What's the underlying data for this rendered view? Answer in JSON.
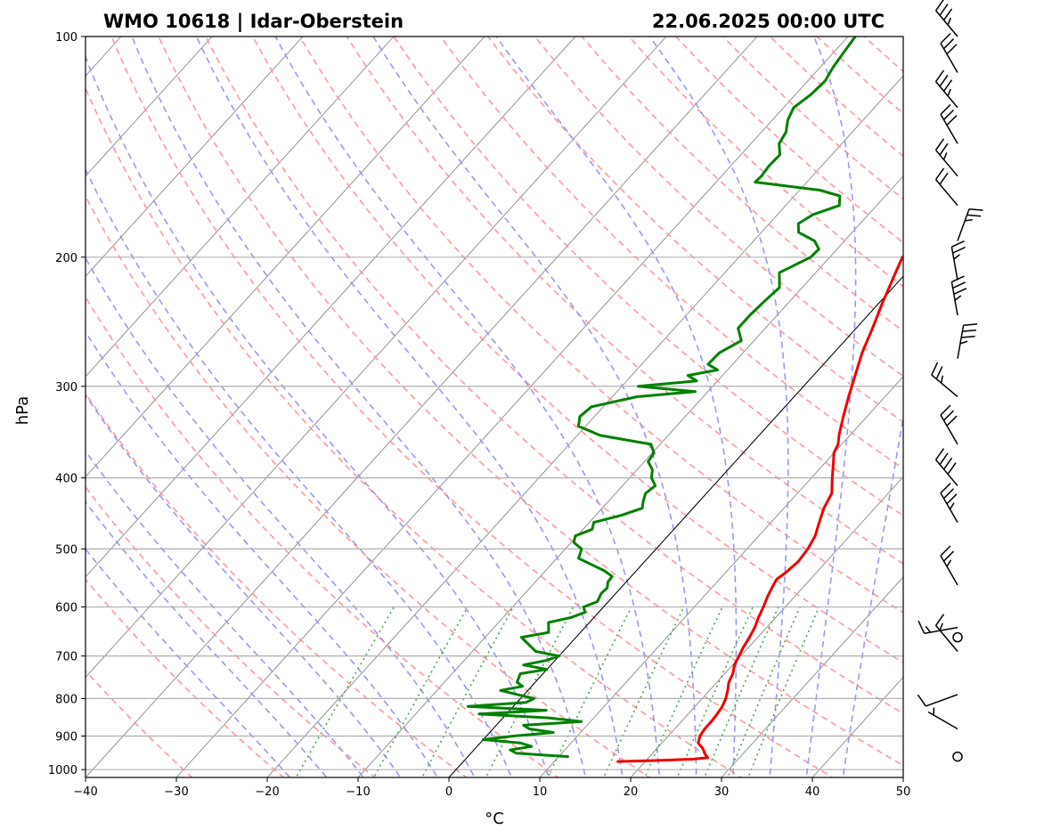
{
  "header": {
    "title_left": "WMO 10618 | Idar-Oberstein",
    "title_right": "22.06.2025 00:00 UTC"
  },
  "chart_data": {
    "type": "line",
    "diagram": "skew-T log-P",
    "xlabel": "°C",
    "ylabel": "hPa",
    "xlim": [
      -40,
      50
    ],
    "ylim": [
      1025,
      100
    ],
    "y_scale": "log",
    "x_ticks": [
      "−40",
      "−30",
      "−20",
      "−10",
      "0",
      "10",
      "20",
      "30",
      "40",
      "50"
    ],
    "y_ticks": [
      "100",
      "200",
      "300",
      "400",
      "500",
      "600",
      "700",
      "800",
      "900",
      "1000"
    ],
    "grid": true,
    "reference_line": {
      "description": "0 °C isotherm",
      "color": "#000000"
    },
    "background_lines": {
      "dry_adiabats": {
        "color": "#ff9999",
        "style": "dashed"
      },
      "moist_adiabats": {
        "color": "#9999ee",
        "style": "dashed"
      },
      "mixing_ratio": {
        "color": "#44aa44",
        "style": "dotted"
      },
      "isotherms": {
        "color": "#888888",
        "style": "solid"
      }
    },
    "series": [
      {
        "key": "temperature",
        "color": "#ee0000",
        "points": [
          [
            975,
            17
          ],
          [
            972,
            21
          ],
          [
            968,
            25
          ],
          [
            963,
            26.5
          ],
          [
            955,
            26
          ],
          [
            945,
            25.5
          ],
          [
            935,
            25
          ],
          [
            920,
            24
          ],
          [
            900,
            23.5
          ],
          [
            880,
            23.3
          ],
          [
            860,
            23.3
          ],
          [
            840,
            23.2
          ],
          [
            820,
            23
          ],
          [
            800,
            22.6
          ],
          [
            780,
            22
          ],
          [
            760,
            21.3
          ],
          [
            740,
            20.9
          ],
          [
            720,
            20.2
          ],
          [
            700,
            19.8
          ],
          [
            680,
            19.4
          ],
          [
            660,
            19.1
          ],
          [
            640,
            18.7
          ],
          [
            620,
            18.1
          ],
          [
            600,
            17.6
          ],
          [
            580,
            17.0
          ],
          [
            560,
            16.5
          ],
          [
            550,
            16.3
          ],
          [
            540,
            16.6
          ],
          [
            520,
            16.9
          ],
          [
            500,
            16.7
          ],
          [
            480,
            16.2
          ],
          [
            460,
            15.3
          ],
          [
            440,
            14.4
          ],
          [
            420,
            13.8
          ],
          [
            400,
            12.3
          ],
          [
            380,
            10.8
          ],
          [
            370,
            10.0
          ],
          [
            360,
            9.6
          ],
          [
            350,
            8.8
          ],
          [
            330,
            7.4
          ],
          [
            310,
            6.0
          ],
          [
            290,
            4.6
          ],
          [
            270,
            3.1
          ],
          [
            250,
            1.8
          ],
          [
            230,
            0.3
          ],
          [
            210,
            -1.2
          ],
          [
            200,
            -2.0
          ],
          [
            195,
            -1.3
          ],
          [
            190,
            -1.0
          ],
          [
            186,
            -0.5
          ],
          [
            180,
            -0.1
          ],
          [
            170,
            0.9
          ],
          [
            165,
            1.0
          ],
          [
            160,
            1.8
          ],
          [
            155,
            3.5
          ],
          [
            152,
            5.8
          ],
          [
            150,
            6.3
          ],
          [
            145,
            7.2
          ],
          [
            140,
            8.2
          ],
          [
            135,
            10.3
          ],
          [
            130,
            12.6
          ],
          [
            127,
            14.5
          ],
          [
            124,
            15.2
          ],
          [
            120,
            16.2
          ],
          [
            115,
            18.3
          ],
          [
            110,
            20.5
          ],
          [
            106,
            22.1
          ],
          [
            103,
            23.5
          ],
          [
            100,
            24.4
          ]
        ]
      },
      {
        "key": "dewpoint",
        "color": "#008000",
        "points": [
          [
            960,
            11
          ],
          [
            955,
            8
          ],
          [
            950,
            5
          ],
          [
            940,
            4
          ],
          [
            930,
            6
          ],
          [
            920,
            4.5
          ],
          [
            910,
            0
          ],
          [
            900,
            3
          ],
          [
            890,
            7
          ],
          [
            880,
            4
          ],
          [
            870,
            3
          ],
          [
            860,
            9
          ],
          [
            850,
            5
          ],
          [
            840,
            -3
          ],
          [
            830,
            4
          ],
          [
            820,
            -5
          ],
          [
            810,
            1
          ],
          [
            800,
            1.5
          ],
          [
            780,
            -3
          ],
          [
            770,
            -1
          ],
          [
            760,
            -2
          ],
          [
            740,
            -2.5
          ],
          [
            730,
            0
          ],
          [
            720,
            -3
          ],
          [
            710,
            -1
          ],
          [
            700,
            0
          ],
          [
            690,
            -3
          ],
          [
            680,
            -4
          ],
          [
            670,
            -5
          ],
          [
            660,
            -6
          ],
          [
            650,
            -3.5
          ],
          [
            630,
            -4.5
          ],
          [
            620,
            -2.5
          ],
          [
            610,
            -1.5
          ],
          [
            600,
            -2.2
          ],
          [
            590,
            -1.2
          ],
          [
            575,
            -1.6
          ],
          [
            565,
            -1.5
          ],
          [
            555,
            -2.0
          ],
          [
            545,
            -2.1
          ],
          [
            535,
            -3.6
          ],
          [
            525,
            -5.6
          ],
          [
            515,
            -7.6
          ],
          [
            500,
            -8.2
          ],
          [
            490,
            -9.7
          ],
          [
            480,
            -10.2
          ],
          [
            470,
            -9.0
          ],
          [
            460,
            -9.5
          ],
          [
            450,
            -7.2
          ],
          [
            440,
            -5.6
          ],
          [
            430,
            -6.2
          ],
          [
            420,
            -6.7
          ],
          [
            410,
            -6.4
          ],
          [
            400,
            -7.6
          ],
          [
            390,
            -8.3
          ],
          [
            380,
            -9.6
          ],
          [
            370,
            -9.8
          ],
          [
            360,
            -11.0
          ],
          [
            350,
            -17.5
          ],
          [
            340,
            -20.8
          ],
          [
            330,
            -21.6
          ],
          [
            320,
            -21.3
          ],
          [
            310,
            -17.3
          ],
          [
            305,
            -11.4
          ],
          [
            300,
            -18.2
          ],
          [
            295,
            -12.3
          ],
          [
            290,
            -13.8
          ],
          [
            285,
            -11.1
          ],
          [
            280,
            -12.7
          ],
          [
            270,
            -12.6
          ],
          [
            260,
            -11.4
          ],
          [
            250,
            -13.0
          ],
          [
            240,
            -13.0
          ],
          [
            230,
            -12.8
          ],
          [
            220,
            -12.5
          ],
          [
            210,
            -14.0
          ],
          [
            200,
            -12.1
          ],
          [
            195,
            -12.0
          ],
          [
            190,
            -13.3
          ],
          [
            185,
            -15.9
          ],
          [
            180,
            -16.8
          ],
          [
            175,
            -16.1
          ],
          [
            170,
            -14.1
          ],
          [
            165,
            -15.0
          ],
          [
            162,
            -17.8
          ],
          [
            158,
            -25.7
          ],
          [
            155,
            -25.6
          ],
          [
            150,
            -25.8
          ],
          [
            145,
            -25.7
          ],
          [
            140,
            -26.9
          ],
          [
            135,
            -27.3
          ],
          [
            130,
            -28.3
          ],
          [
            125,
            -28.9
          ],
          [
            120,
            -28.3
          ],
          [
            115,
            -28.1
          ],
          [
            110,
            -28.6
          ],
          [
            105,
            -28.9
          ],
          [
            100,
            -29.2
          ]
        ]
      }
    ],
    "wind_barbs": [
      {
        "p": 960,
        "dir": 210,
        "spd": 0
      },
      {
        "p": 880,
        "dir": 300,
        "spd": 5
      },
      {
        "p": 790,
        "dir": 250,
        "spd": 10
      },
      {
        "p": 690,
        "dir": 320,
        "spd": 15
      },
      {
        "p": 660,
        "dir": 0,
        "spd": 0
      },
      {
        "p": 640,
        "dir": 260,
        "spd": 15
      },
      {
        "p": 560,
        "dir": 330,
        "spd": 25
      },
      {
        "p": 460,
        "dir": 330,
        "spd": 35
      },
      {
        "p": 410,
        "dir": 320,
        "spd": 40
      },
      {
        "p": 360,
        "dir": 330,
        "spd": 30
      },
      {
        "p": 310,
        "dir": 310,
        "spd": 25
      },
      {
        "p": 275,
        "dir": 10,
        "spd": 35
      },
      {
        "p": 240,
        "dir": 350,
        "spd": 35
      },
      {
        "p": 215,
        "dir": 350,
        "spd": 25
      },
      {
        "p": 190,
        "dir": 20,
        "spd": 25
      },
      {
        "p": 170,
        "dir": 320,
        "spd": 20
      },
      {
        "p": 155,
        "dir": 320,
        "spd": 25
      },
      {
        "p": 140,
        "dir": 330,
        "spd": 30
      },
      {
        "p": 125,
        "dir": 320,
        "spd": 35
      },
      {
        "p": 112,
        "dir": 330,
        "spd": 30
      },
      {
        "p": 100,
        "dir": 320,
        "spd": 35
      }
    ]
  }
}
